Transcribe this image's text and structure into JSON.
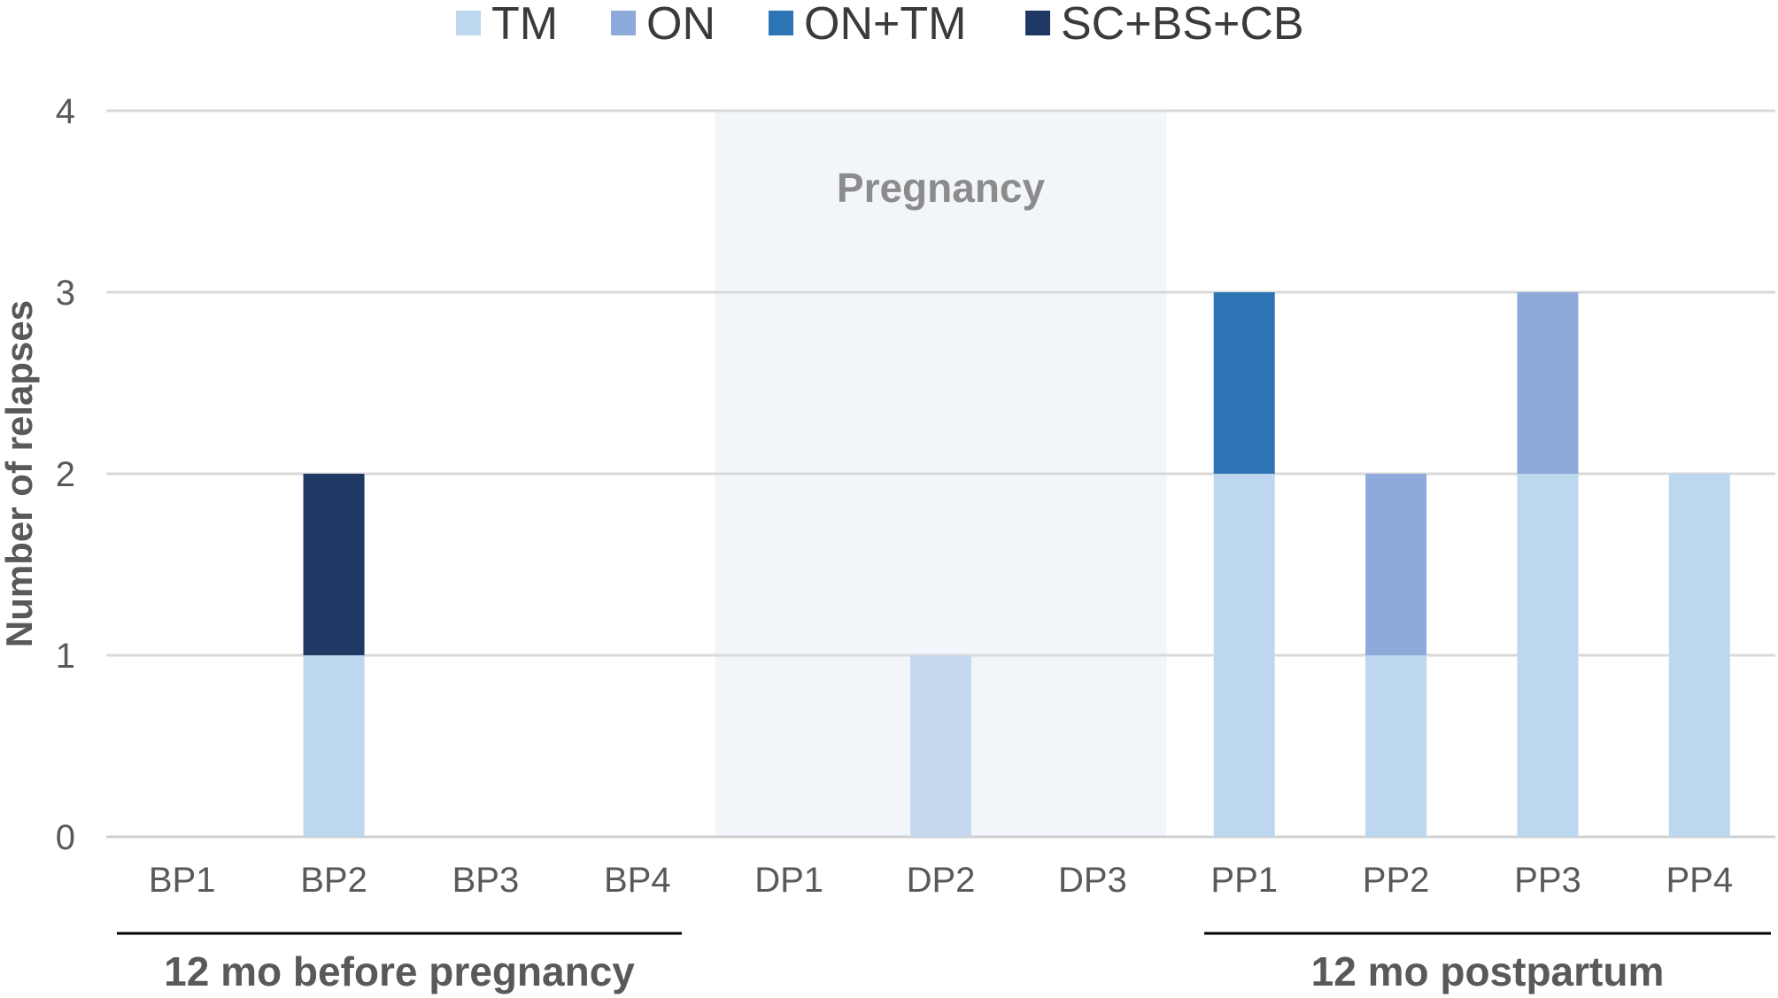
{
  "chart_data": {
    "type": "bar",
    "stacked": true,
    "categories": [
      "BP1",
      "BP2",
      "BP3",
      "BP4",
      "DP1",
      "DP2",
      "DP3",
      "PP1",
      "PP2",
      "PP3",
      "PP4"
    ],
    "series": [
      {
        "name": "TM",
        "color": "#bdd7ee",
        "values": [
          0,
          1,
          0,
          0,
          0,
          1,
          0,
          2,
          1,
          2,
          2
        ]
      },
      {
        "name": "ON",
        "color": "#8eaadb",
        "values": [
          0,
          0,
          0,
          0,
          0,
          0,
          0,
          0,
          1,
          1,
          0
        ]
      },
      {
        "name": "ON+TM",
        "color": "#2e75b6",
        "values": [
          0,
          0,
          0,
          0,
          0,
          0,
          0,
          1,
          0,
          0,
          0
        ]
      },
      {
        "name": "SC+BS+CB",
        "color": "#203864",
        "values": [
          0,
          1,
          0,
          0,
          0,
          0,
          0,
          0,
          0,
          0,
          0
        ]
      }
    ],
    "title": "",
    "xlabel": "",
    "ylabel": "Number of relapses",
    "ylim": [
      0,
      4
    ],
    "yticks": [
      "0",
      "1",
      "2",
      "3",
      "4"
    ],
    "grid": true,
    "legend_position": "top",
    "shaded_region": {
      "label": "Pregnancy",
      "from_category": "DP1",
      "to_category": "DP3",
      "color": "#f2f6fb"
    },
    "period_labels": [
      {
        "label": "12 mo before pregnancy",
        "from_category": "BP1",
        "to_category": "BP4"
      },
      {
        "label": "12 mo postpartum",
        "from_category": "PP1",
        "to_category": "PP4"
      }
    ]
  }
}
